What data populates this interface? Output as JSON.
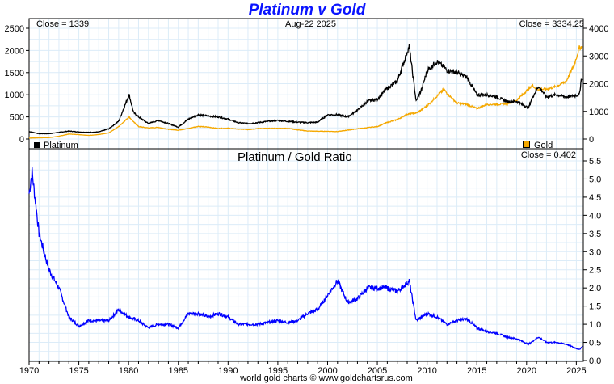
{
  "chart_data": [
    {
      "type": "line",
      "title": "Platinum v Gold",
      "date_label": "Aug-22  2025",
      "left_axis": {
        "ylim": [
          0,
          2500
        ],
        "ticks": [
          "0",
          "500",
          "1000",
          "1500",
          "2000",
          "2500"
        ]
      },
      "right_axis": {
        "ylim": [
          0,
          4000
        ],
        "ticks": [
          "0",
          "1000",
          "2000",
          "3000",
          "4000"
        ]
      },
      "left_close": "Close = 1339",
      "right_close": "Close = 3334.25",
      "legend": [
        {
          "name": "Platinum",
          "color": "#000000",
          "position": "bottom-left"
        },
        {
          "name": "Gold",
          "color": "#f5a800",
          "position": "bottom-right"
        }
      ],
      "series": [
        {
          "name": "Platinum",
          "axis": "left",
          "color": "#000000",
          "x": [
            1970,
            1971,
            1972,
            1973,
            1974,
            1975,
            1976,
            1977,
            1978,
            1979,
            1980.05,
            1980.5,
            1981,
            1982,
            1983,
            1984,
            1985,
            1986,
            1987,
            1988,
            1989,
            1990,
            1991,
            1992,
            1993,
            1994,
            1995,
            1996,
            1997,
            1998,
            1999,
            2000,
            2001,
            2002,
            2003,
            2004,
            2005,
            2006,
            2007,
            2008.2,
            2008.9,
            2009.5,
            2010,
            2011,
            2011.8,
            2012,
            2013,
            2014,
            2015,
            2016,
            2017,
            2018,
            2019,
            2020.2,
            2020.5,
            2021.2,
            2022,
            2023,
            2024,
            2025.3,
            2025.5,
            2025.64
          ],
          "y": [
            170,
            120,
            120,
            150,
            180,
            160,
            150,
            160,
            230,
            400,
            1000,
            600,
            500,
            350,
            420,
            350,
            270,
            450,
            550,
            520,
            500,
            450,
            370,
            350,
            370,
            400,
            420,
            400,
            380,
            370,
            380,
            550,
            550,
            500,
            650,
            850,
            900,
            1150,
            1300,
            2100,
            850,
            1150,
            1550,
            1750,
            1600,
            1550,
            1500,
            1400,
            1000,
            1000,
            950,
            850,
            850,
            700,
            900,
            1200,
            950,
            1000,
            950,
            1000,
            1350,
            1339
          ]
        },
        {
          "name": "Gold",
          "axis": "right",
          "color": "#f5a800",
          "x": [
            1970,
            1972,
            1973,
            1974,
            1975,
            1976,
            1977,
            1978,
            1979,
            1980.05,
            1980.5,
            1981,
            1982,
            1983,
            1984,
            1985,
            1986,
            1987,
            1988,
            1989,
            1990,
            1991,
            1992,
            1993,
            1994,
            1995,
            1996,
            1997,
            1998,
            1999,
            2000,
            2001,
            2002,
            2003,
            2004,
            2005,
            2006,
            2007,
            2008,
            2009,
            2010,
            2011.7,
            2012,
            2013,
            2014,
            2015,
            2016,
            2017,
            2018,
            2019,
            2020.6,
            2021,
            2022,
            2023,
            2024,
            2024.8,
            2025.3,
            2025.64
          ],
          "y": [
            35,
            50,
            100,
            180,
            160,
            130,
            160,
            220,
            450,
            800,
            620,
            450,
            400,
            420,
            350,
            320,
            380,
            460,
            430,
            380,
            390,
            360,
            340,
            380,
            385,
            385,
            390,
            330,
            290,
            280,
            280,
            270,
            320,
            370,
            410,
            450,
            600,
            700,
            900,
            950,
            1200,
            1800,
            1650,
            1300,
            1250,
            1100,
            1250,
            1250,
            1280,
            1400,
            1950,
            1800,
            1800,
            1900,
            2100,
            2700,
            3300,
            3334.25
          ]
        }
      ]
    },
    {
      "type": "line",
      "title": "Platinum  /  Gold Ratio",
      "close": "Close = 0.402",
      "ylim": [
        0,
        5.5
      ],
      "y_ticks": [
        "0.0",
        "0.5",
        "1.0",
        "1.5",
        "2.0",
        "2.5",
        "3.0",
        "3.5",
        "4.0",
        "4.5",
        "5.0",
        "5.5"
      ],
      "xlim": [
        1970,
        2025.7
      ],
      "x_ticks": [
        "1970",
        "1975",
        "1980",
        "1985",
        "1990",
        "1995",
        "2000",
        "2005",
        "2010",
        "2015",
        "2020",
        "2025"
      ],
      "series": [
        {
          "name": "Platinum/Gold Ratio",
          "color": "#0000ff",
          "x": [
            1970,
            1970.3,
            1971,
            1972,
            1973,
            1974,
            1975,
            1976,
            1977,
            1978,
            1979,
            1980,
            1981,
            1982,
            1983,
            1984,
            1985,
            1986,
            1987,
            1988,
            1989,
            1990,
            1991,
            1992,
            1993,
            1994,
            1995,
            1996,
            1997,
            1998,
            1999,
            2000,
            2001,
            2002,
            2003,
            2004,
            2005,
            2006,
            2007,
            2008.2,
            2008.9,
            2010,
            2011,
            2012,
            2013,
            2014,
            2015,
            2016,
            2017,
            2018,
            2019,
            2020.2,
            2021.2,
            2022,
            2023,
            2024,
            2025.3,
            2025.64
          ],
          "y": [
            4.6,
            5.2,
            3.5,
            2.5,
            2.0,
            1.2,
            0.95,
            1.1,
            1.1,
            1.1,
            1.4,
            1.2,
            1.1,
            0.9,
            1.0,
            1.0,
            0.9,
            1.3,
            1.3,
            1.2,
            1.3,
            1.2,
            1.0,
            1.0,
            1.0,
            1.05,
            1.1,
            1.05,
            1.1,
            1.3,
            1.4,
            1.8,
            2.2,
            1.6,
            1.7,
            2.0,
            2.0,
            2.0,
            1.9,
            2.2,
            1.1,
            1.3,
            1.2,
            1.0,
            1.1,
            1.15,
            0.9,
            0.8,
            0.75,
            0.65,
            0.6,
            0.45,
            0.65,
            0.5,
            0.5,
            0.45,
            0.3,
            0.402
          ]
        }
      ]
    }
  ],
  "footer": "world gold charts © www.goldchartsrus.com"
}
